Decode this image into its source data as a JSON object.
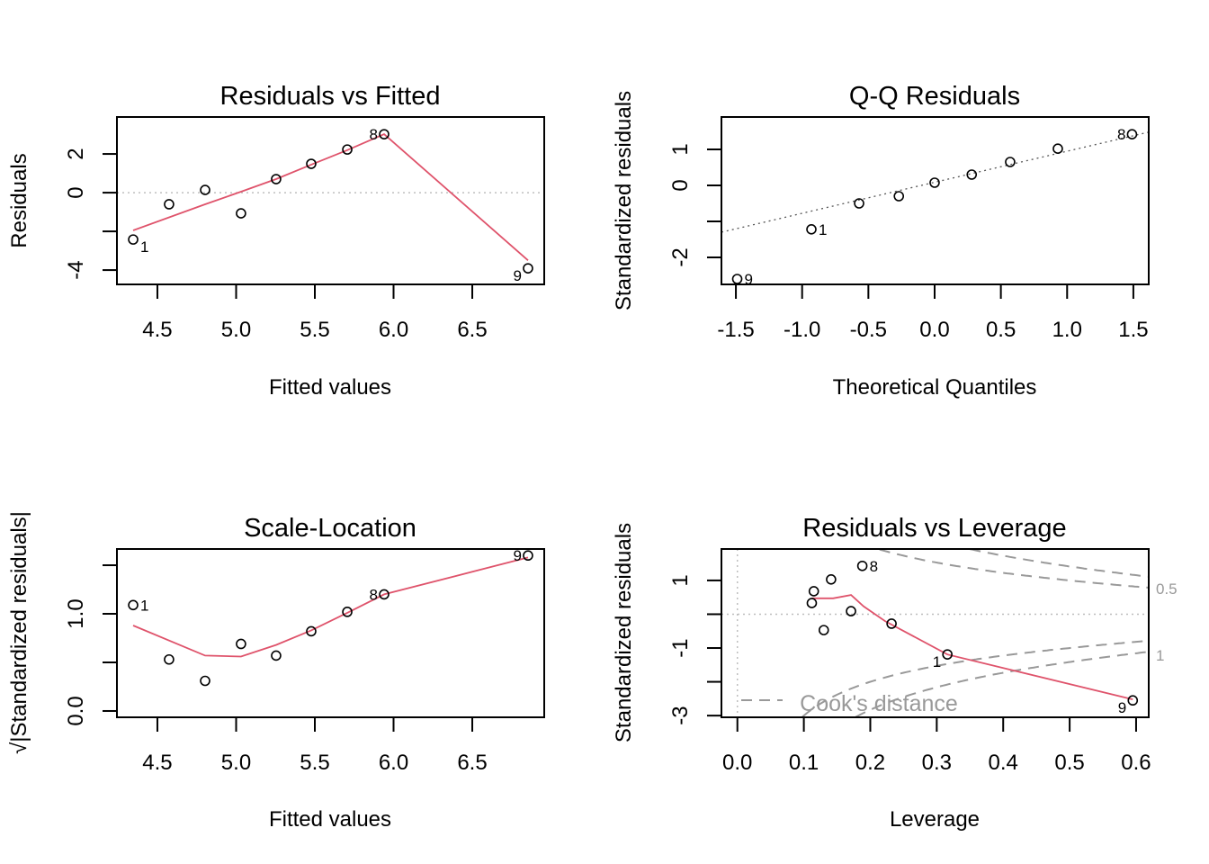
{
  "colors": {
    "smooth": "#DF536B",
    "reference": "#BEBEBE",
    "cooks": "#999999",
    "points": "#000000"
  },
  "chart_data": [
    {
      "type": "scatter",
      "title": "Residuals vs Fitted",
      "xlabel": "Fitted values",
      "ylabel": "Residuals",
      "xlim": [
        4.243,
        6.957
      ],
      "ylim": [
        -4.74,
        3.91
      ],
      "xticks": [
        4.5,
        5.0,
        5.5,
        6.0,
        6.5
      ],
      "xtick_labels": [
        "4.5",
        "5.0",
        "5.5",
        "6.0",
        "6.5"
      ],
      "yticks": [
        -4,
        -2,
        0,
        2
      ],
      "ytick_labels": [
        "-4",
        "",
        "0",
        "2"
      ],
      "hline": 0,
      "points": [
        {
          "x": 4.346,
          "y": -2.42,
          "label": "1",
          "pos": "below-right"
        },
        {
          "x": 4.574,
          "y": -0.6
        },
        {
          "x": 4.803,
          "y": 0.14
        },
        {
          "x": 5.031,
          "y": -1.07
        },
        {
          "x": 5.254,
          "y": 0.7
        },
        {
          "x": 5.477,
          "y": 1.49
        },
        {
          "x": 5.706,
          "y": 2.23
        },
        {
          "x": 5.94,
          "y": 3.02,
          "label": "8",
          "pos": "left"
        },
        {
          "x": 6.854,
          "y": -3.91,
          "label": "9",
          "pos": "below-left"
        }
      ],
      "smooth": [
        [
          4.346,
          -1.95
        ],
        [
          4.803,
          -0.6
        ],
        [
          5.031,
          0.05
        ],
        [
          5.254,
          0.7
        ],
        [
          5.477,
          1.45
        ],
        [
          5.706,
          2.2
        ],
        [
          5.94,
          3.02
        ],
        [
          6.854,
          -3.5
        ]
      ]
    },
    {
      "type": "scatter",
      "title": "Q-Q Residuals",
      "xlabel": "Theoretical Quantiles",
      "ylabel": "Standardized residuals",
      "xlim": [
        -1.609,
        1.616
      ],
      "ylim": [
        -2.75,
        1.9
      ],
      "xticks": [
        -1.5,
        -1.0,
        -0.5,
        0.0,
        0.5,
        1.0,
        1.5
      ],
      "xtick_labels": [
        "-1.5",
        "-1.0",
        "-0.5",
        "0.0",
        "0.5",
        "1.0",
        "1.5"
      ],
      "yticks": [
        -2,
        -1,
        0,
        1
      ],
      "ytick_labels": [
        "-2",
        "",
        "0",
        "1"
      ],
      "refline": [
        [
          -1.609,
          -1.3
        ],
        [
          1.616,
          1.48
        ]
      ],
      "points": [
        {
          "x": -1.49,
          "y": -2.6,
          "label": "9",
          "pos": "right"
        },
        {
          "x": -0.93,
          "y": -1.22,
          "label": "1",
          "pos": "right"
        },
        {
          "x": -0.57,
          "y": -0.5
        },
        {
          "x": -0.27,
          "y": -0.3
        },
        {
          "x": 0.0,
          "y": 0.075
        },
        {
          "x": 0.28,
          "y": 0.3
        },
        {
          "x": 0.57,
          "y": 0.65
        },
        {
          "x": 0.93,
          "y": 1.02
        },
        {
          "x": 1.49,
          "y": 1.42,
          "label": "8",
          "pos": "left"
        }
      ]
    },
    {
      "type": "scatter",
      "title": "Scale-Location",
      "xlabel": "Fitted values",
      "ylabel": "√|Standardized residuals|",
      "xlim": [
        4.243,
        6.957
      ],
      "ylim": [
        -0.065,
        1.667
      ],
      "xticks": [
        4.5,
        5.0,
        5.5,
        6.0,
        6.5
      ],
      "xtick_labels": [
        "4.5",
        "5.0",
        "5.5",
        "6.0",
        "6.5"
      ],
      "yticks": [
        0.0,
        0.5,
        1.0,
        1.5
      ],
      "ytick_labels": [
        "0.0",
        "",
        "1.0",
        ""
      ],
      "points": [
        {
          "x": 4.346,
          "y": 1.09,
          "label": "1",
          "pos": "right"
        },
        {
          "x": 4.574,
          "y": 0.53
        },
        {
          "x": 4.803,
          "y": 0.31
        },
        {
          "x": 5.031,
          "y": 0.69
        },
        {
          "x": 5.254,
          "y": 0.57
        },
        {
          "x": 5.477,
          "y": 0.82
        },
        {
          "x": 5.706,
          "y": 1.02
        },
        {
          "x": 5.94,
          "y": 1.2,
          "label": "8",
          "pos": "left"
        },
        {
          "x": 6.854,
          "y": 1.6,
          "label": "9",
          "pos": "left"
        }
      ],
      "smooth": [
        [
          4.346,
          0.88
        ],
        [
          4.803,
          0.57
        ],
        [
          5.031,
          0.56
        ],
        [
          5.254,
          0.68
        ],
        [
          5.477,
          0.83
        ],
        [
          5.706,
          1.01
        ],
        [
          5.94,
          1.2
        ],
        [
          6.854,
          1.58
        ]
      ]
    },
    {
      "type": "scatter",
      "title": "Residuals vs Leverage",
      "xlabel": "Leverage",
      "ylabel": "Standardized residuals",
      "xlim": [
        -0.024,
        0.619
      ],
      "ylim": [
        -3.05,
        1.93
      ],
      "xticks": [
        0.0,
        0.1,
        0.2,
        0.3,
        0.4,
        0.5,
        0.6
      ],
      "xtick_labels": [
        "0.0",
        "0.1",
        "0.2",
        "0.3",
        "0.4",
        "0.5",
        "0.6"
      ],
      "yticks": [
        -3,
        -2,
        -1,
        0,
        1
      ],
      "ytick_labels": [
        "-3",
        "",
        "-1",
        "",
        "1"
      ],
      "hline": 0,
      "vline": 0,
      "points": [
        {
          "x": 0.115,
          "y": 0.68
        },
        {
          "x": 0.112,
          "y": 0.33
        },
        {
          "x": 0.141,
          "y": 1.03
        },
        {
          "x": 0.13,
          "y": -0.47
        },
        {
          "x": 0.171,
          "y": 0.09
        },
        {
          "x": 0.188,
          "y": 1.43,
          "label": "8",
          "pos": "right"
        },
        {
          "x": 0.232,
          "y": -0.28
        },
        {
          "x": 0.316,
          "y": -1.19,
          "label": "1",
          "pos": "below-left"
        },
        {
          "x": 0.595,
          "y": -2.55,
          "label": "9",
          "pos": "below-left"
        }
      ],
      "smooth": [
        [
          0.112,
          0.47
        ],
        [
          0.144,
          0.47
        ],
        [
          0.171,
          0.57
        ],
        [
          0.19,
          0.23
        ],
        [
          0.222,
          -0.2
        ],
        [
          0.316,
          -1.19
        ],
        [
          0.595,
          -2.52
        ]
      ],
      "cooks_levels": [
        0.5,
        1
      ],
      "cooks_level_labels": [
        "0.5",
        "1"
      ],
      "n_params": 2,
      "legend": "Cook's distance"
    }
  ]
}
